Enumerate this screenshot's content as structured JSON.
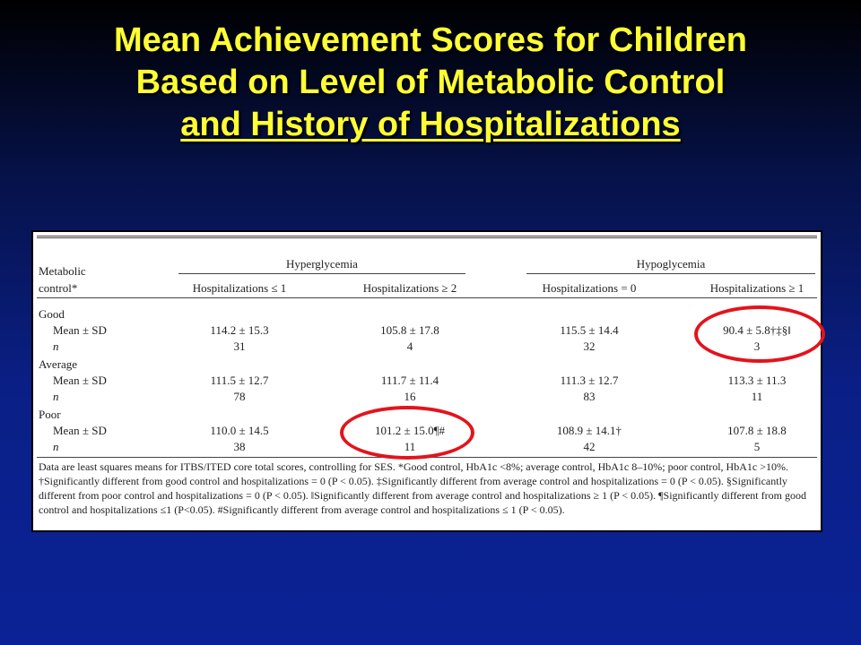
{
  "title": {
    "line1": "Mean Achievement Scores for Children",
    "line2": "Based on Level of Metabolic Control",
    "line3": "and History of Hospitalizations"
  },
  "table": {
    "row_header_line1": "Metabolic",
    "row_header_line2": "control*",
    "groups": [
      "Hyperglycemia",
      "Hypoglycemia"
    ],
    "columns": [
      "Hospitalizations ≤ 1",
      "Hospitalizations ≥ 2",
      "Hospitalizations = 0",
      "Hospitalizations ≥ 1"
    ],
    "sections": [
      {
        "label": "Good",
        "mean_label": "Mean ± SD",
        "n_label": "n",
        "means": [
          "114.2 ± 15.3",
          "105.8 ± 17.8",
          "115.5 ± 14.4",
          "90.4 ± 5.8†‡§‖"
        ],
        "ns": [
          "31",
          "4",
          "32",
          "3"
        ]
      },
      {
        "label": "Average",
        "mean_label": "Mean ± SD",
        "n_label": "n",
        "means": [
          "111.5 ± 12.7",
          "111.7 ± 11.4",
          "111.3 ± 12.7",
          "113.3 ± 11.3"
        ],
        "ns": [
          "78",
          "16",
          "83",
          "11"
        ]
      },
      {
        "label": "Poor",
        "mean_label": "Mean ± SD",
        "n_label": "n",
        "means": [
          "110.0 ± 14.5",
          "101.2 ± 15.0¶#",
          "108.9 ± 14.1†",
          "107.8 ± 18.8"
        ],
        "ns": [
          "38",
          "11",
          "42",
          "5"
        ]
      }
    ],
    "footnote": "Data are least squares means for ITBS/ITED core total scores, controlling for SES. *Good control, HbA1c <8%; average control, HbA1c 8–10%; poor control, HbA1c >10%. †Significantly different from good control and hospitalizations = 0 (P < 0.05). ‡Significantly different from average control and hospitalizations = 0 (P < 0.05). §Significantly different from poor control and hospitalizations = 0 (P < 0.05). ‖Significantly different from average control and hospitalizations ≥ 1 (P < 0.05). ¶Significantly different from good control and hospitalizations ≤1 (P<0.05). #Significantly different from average control and hospitalizations ≤ 1 (P < 0.05)."
  },
  "colors": {
    "title": "#ffff33",
    "highlight_ring": "#e3141c",
    "background_top": "#000000",
    "background_bottom": "#0b2296"
  }
}
